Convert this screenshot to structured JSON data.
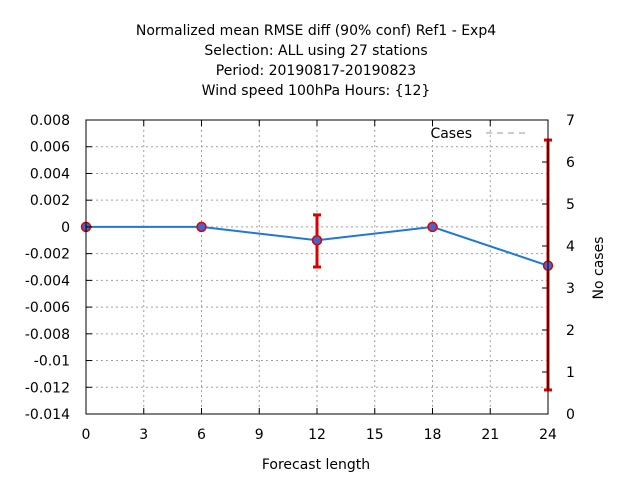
{
  "chart_data": {
    "type": "line",
    "title_lines": [
      "Normalized mean RMSE diff (90% conf) Ref1 - Exp4",
      "Selection: ALL using     27 stations",
      "Period: 20190817-20190823",
      "Wind speed 100hPa   Hours: {12}"
    ],
    "xlabel": "Forecast length",
    "ylabel": "",
    "y2label": "No cases",
    "xlim": [
      0,
      24
    ],
    "ylim": [
      -0.014,
      0.008
    ],
    "y2lim": [
      0,
      7
    ],
    "x_ticks": [
      "0",
      "3",
      "6",
      "9",
      "12",
      "15",
      "18",
      "21",
      "24"
    ],
    "y_ticks": [
      "0.008",
      "0.006",
      "0.004",
      "0.002",
      "0",
      "-0.002",
      "-0.004",
      "-0.006",
      "-0.008",
      "-0.01",
      "-0.012",
      "-0.014"
    ],
    "y2_ticks": [
      "7",
      "6",
      "5",
      "4",
      "3",
      "2",
      "1",
      "0"
    ],
    "grid": true,
    "legend": {
      "position": "top-right",
      "entries": [
        "Cases"
      ]
    },
    "series": [
      {
        "x": [
          0,
          6,
          12,
          18,
          24
        ],
        "y": [
          0.0,
          0.0,
          -0.001,
          0.0,
          -0.0029
        ],
        "error_low": [
          0.0,
          0.0,
          -0.003,
          0.0,
          -0.0122
        ],
        "error_high": [
          0.0,
          0.0,
          0.0009,
          0.0,
          0.0065
        ],
        "color": "#1f78d6",
        "error_color": "#dd0000",
        "marker_color": "#4466cc"
      },
      {
        "name": "Cases",
        "axis": "y2",
        "x": [
          0,
          6,
          12,
          18,
          24
        ],
        "y": [
          7,
          7,
          7,
          7,
          7
        ],
        "color": "#999999",
        "dash": true
      }
    ]
  }
}
